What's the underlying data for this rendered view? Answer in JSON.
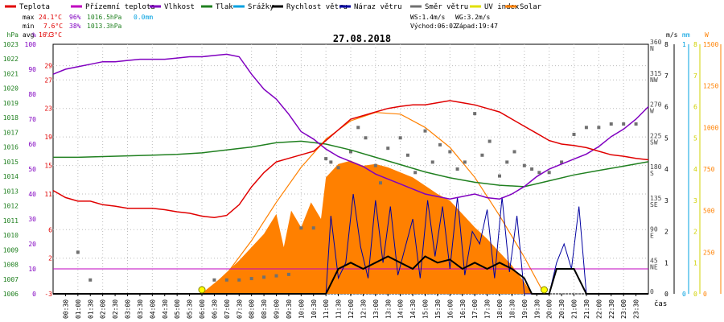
{
  "chart_data": {
    "type": "line",
    "title": "27.08.2018",
    "legend": {
      "position": "top",
      "items": [
        {
          "label": "Teplota",
          "color": "#e00000"
        },
        {
          "label": "Přízemní teplota",
          "color": "#c000c0"
        },
        {
          "label": "Vlhkost",
          "color": "#8000c0"
        },
        {
          "label": "Tlak",
          "color": "#208020"
        },
        {
          "label": "Srážky",
          "color": "#00a0e0"
        },
        {
          "label": "Rychlost větru",
          "color": "#000000"
        },
        {
          "label": "Náraz větru",
          "color": "#0000a0"
        },
        {
          "label": "Směr větru",
          "color": "#707070"
        },
        {
          "label": "UV index",
          "color": "#e0e000"
        },
        {
          "label": "Solar",
          "color": "#ff8000"
        }
      ]
    },
    "stats": {
      "max_label": "max",
      "max_temp": "24.1°C",
      "max_hum": "96%",
      "max_press": "1016.5hPa",
      "rain": "0.0mm",
      "min_label": "min",
      "min_temp": "7.6°C",
      "min_hum": "38%",
      "min_press": "1013.3hPa",
      "avg_label": "avg",
      "avg_temp": "16.3°C"
    },
    "info": {
      "ws": "WS:1.4m/s",
      "wg": "WG:3.2m/s",
      "sunrise": "Východ:06:02",
      "sunset": "Západ:19:47"
    },
    "xlabel": "čas",
    "x_ticks": [
      "00:30",
      "01:00",
      "01:30",
      "02:00",
      "02:30",
      "03:00",
      "03:30",
      "04:00",
      "04:30",
      "05:00",
      "05:30",
      "06:00",
      "06:30",
      "07:00",
      "07:30",
      "08:00",
      "08:30",
      "09:00",
      "09:30",
      "10:00",
      "10:30",
      "11:00",
      "11:30",
      "12:00",
      "12:30",
      "13:00",
      "13:30",
      "14:00",
      "14:30",
      "15:00",
      "15:30",
      "16:00",
      "16:30",
      "17:00",
      "17:30",
      "18:00",
      "18:30",
      "19:00",
      "19:30",
      "20:00",
      "20:30",
      "21:00",
      "21:30",
      "22:00",
      "22:30",
      "23:00",
      "23:30"
    ],
    "axes": {
      "pressure": {
        "unit": "hPa",
        "ylim": [
          1006,
          1023
        ],
        "ticks": [
          "1023",
          "1022",
          "1021",
          "1020",
          "1019",
          "1018",
          "1017",
          "1016",
          "1015",
          "1014",
          "1013",
          "1012",
          "1011",
          "1010",
          "1009",
          "1008",
          "1007",
          "1006"
        ]
      },
      "humidity": {
        "unit": "%",
        "ylim": [
          0,
          100
        ],
        "ticks": [
          "100",
          "90",
          "80",
          "70",
          "60",
          "50",
          "40",
          "30",
          "20",
          "10",
          "0"
        ]
      },
      "temperature": {
        "unit": "°C",
        "ylim": [
          -3,
          32
        ],
        "ticks": [
          "29",
          "27",
          "23",
          "19",
          "15",
          "11",
          "6",
          "2",
          "-3"
        ]
      },
      "direction": {
        "ticks": [
          "360",
          "315",
          "270",
          "225",
          "180",
          "135",
          "90",
          "45",
          "0"
        ],
        "labels": [
          "N",
          "NW",
          "W",
          "SW",
          "S",
          "SE",
          "E",
          "NE",
          ""
        ]
      },
      "wind": {
        "unit": "m/s",
        "ylim": [
          0,
          8
        ],
        "ticks": [
          "8",
          "7",
          "6",
          "5",
          "4",
          "3",
          "2",
          "1",
          "0"
        ]
      },
      "rain": {
        "unit": "mm",
        "ylim": [
          0,
          1
        ],
        "ticks": [
          "1",
          "0"
        ]
      },
      "uv": {
        "ticks": [
          "8",
          "7",
          "6",
          "5",
          "4",
          "3",
          "2",
          "1",
          "0"
        ]
      },
      "solar": {
        "unit": "W",
        "ylim": [
          0,
          1500
        ],
        "ticks": [
          "1500",
          "1250",
          "1000",
          "750",
          "500",
          "250",
          "0"
        ]
      }
    },
    "series": [
      {
        "name": "Teplota",
        "axis": "temperature",
        "color": "#e00000",
        "x": [
          0,
          0.5,
          1,
          1.5,
          2,
          2.5,
          3,
          3.5,
          4,
          4.5,
          5,
          5.5,
          6,
          6.5,
          7,
          7.5,
          8,
          8.5,
          9,
          9.5,
          10,
          10.5,
          11,
          11.5,
          12,
          12.5,
          13,
          13.5,
          14,
          14.5,
          15,
          15.5,
          16,
          16.5,
          17,
          17.5,
          18,
          18.5,
          19,
          19.5,
          20,
          20.5,
          21,
          21.5,
          22,
          22.5,
          23,
          23.5,
          24
        ],
        "y": [
          11.5,
          10.5,
          10,
          10,
          9.5,
          9.3,
          9,
          9,
          9,
          8.8,
          8.5,
          8.3,
          7.9,
          7.7,
          8,
          9.5,
          12,
          14,
          15.5,
          16,
          16.5,
          17,
          18.5,
          20,
          21.5,
          22,
          22.5,
          23,
          23.3,
          23.5,
          23.5,
          23.8,
          24.1,
          23.8,
          23.5,
          23,
          22.5,
          21.5,
          20.5,
          19.5,
          18.5,
          18,
          17.8,
          17.5,
          17,
          16.5,
          16.3,
          16,
          15.8
        ]
      },
      {
        "name": "Vlhkost",
        "axis": "humidity",
        "color": "#8000c0",
        "x": [
          0,
          0.5,
          1,
          1.5,
          2,
          2.5,
          3,
          3.5,
          4,
          4.5,
          5,
          5.5,
          6,
          6.5,
          7,
          7.5,
          8,
          8.5,
          9,
          9.5,
          10,
          10.5,
          11,
          11.5,
          12,
          12.5,
          13,
          13.5,
          14,
          14.5,
          15,
          15.5,
          16,
          16.5,
          17,
          17.5,
          18,
          18.5,
          19,
          19.5,
          20,
          20.5,
          21,
          21.5,
          22,
          22.5,
          23,
          23.5,
          24
        ],
        "y": [
          88,
          90,
          91,
          92,
          93,
          93,
          93.5,
          94,
          94,
          94,
          94.5,
          95,
          95,
          95.5,
          96,
          95,
          88,
          82,
          78,
          72,
          65,
          62,
          58,
          55,
          53,
          51,
          48,
          46,
          44,
          42,
          40,
          39,
          38,
          39,
          40,
          38.5,
          38,
          40,
          43,
          47,
          50,
          52,
          54,
          56,
          59,
          63,
          66,
          70,
          75
        ]
      },
      {
        "name": "Tlak",
        "axis": "pressure",
        "color": "#208020",
        "x": [
          0,
          1,
          2,
          3,
          4,
          5,
          6,
          7,
          8,
          9,
          10,
          11,
          12,
          13,
          14,
          15,
          16,
          17,
          18,
          19,
          20,
          21,
          22,
          23,
          24
        ],
        "y": [
          1015.3,
          1015.3,
          1015.35,
          1015.4,
          1015.45,
          1015.5,
          1015.6,
          1015.8,
          1016,
          1016.3,
          1016.4,
          1016.2,
          1015.8,
          1015.3,
          1014.8,
          1014.3,
          1013.9,
          1013.6,
          1013.4,
          1013.3,
          1013.7,
          1014.1,
          1014.4,
          1014.7,
          1015
        ]
      },
      {
        "name": "Náraz větru",
        "axis": "wind",
        "color": "#0000a0",
        "x": [
          0,
          11,
          11.2,
          11.5,
          11.8,
          12.1,
          12.4,
          12.7,
          13,
          13.3,
          13.6,
          13.9,
          14.2,
          14.5,
          14.8,
          15.1,
          15.4,
          15.7,
          16,
          16.3,
          16.6,
          16.9,
          17.2,
          17.5,
          17.8,
          18.1,
          18.4,
          18.7,
          19,
          19.3,
          20,
          20.3,
          20.6,
          20.9,
          21.2,
          21.5,
          22,
          24
        ],
        "y": [
          0,
          0,
          2.5,
          0.5,
          1,
          3.2,
          1.5,
          0.5,
          3,
          1,
          2.8,
          0.6,
          1.5,
          2.4,
          0.5,
          3,
          1.2,
          2.8,
          0.8,
          3.1,
          0.6,
          2,
          1.6,
          2.7,
          0.5,
          3.1,
          0.7,
          2.5,
          0,
          0,
          0,
          1,
          1.6,
          0.8,
          2.8,
          0,
          0,
          0
        ]
      },
      {
        "name": "Rychlost větru",
        "axis": "wind",
        "color": "#000000",
        "x": [
          0,
          11,
          11.5,
          12,
          12.5,
          13,
          13.5,
          14,
          14.5,
          15,
          15.5,
          16,
          16.5,
          17,
          17.5,
          18,
          18.5,
          19,
          19.3,
          20,
          20.3,
          21,
          21.5,
          22,
          24
        ],
        "y": [
          0,
          0,
          0.8,
          1,
          0.8,
          1,
          1.2,
          1,
          0.8,
          1.2,
          1,
          1.1,
          0.8,
          1,
          0.8,
          1,
          0.8,
          0.5,
          0,
          0,
          0.8,
          0.8,
          0,
          0,
          0
        ]
      },
      {
        "name": "Solar",
        "axis": "solar",
        "color": "#ff8000",
        "x": [
          6,
          7,
          8,
          9,
          10,
          11,
          12,
          13,
          14,
          15,
          16,
          17,
          18,
          19,
          19.8
        ],
        "y": [
          0,
          120,
          320,
          550,
          760,
          930,
          1040,
          1090,
          1080,
          1000,
          880,
          700,
          470,
          220,
          0
        ]
      }
    ],
    "solar_area": {
      "x": [
        6,
        6.5,
        7,
        7.5,
        8,
        8.5,
        9,
        9.3,
        9.6,
        10,
        10.4,
        10.8,
        11,
        11.5,
        12,
        12.5,
        13,
        13.5,
        14,
        14.5,
        15,
        15.5,
        16,
        16.5,
        17,
        17.5,
        18,
        18.5,
        19,
        19.3
      ],
      "y": [
        0,
        60,
        130,
        200,
        280,
        360,
        480,
        280,
        500,
        400,
        550,
        450,
        700,
        780,
        800,
        770,
        780,
        760,
        730,
        700,
        650,
        600,
        560,
        480,
        400,
        330,
        250,
        170,
        70,
        0
      ]
    },
    "wind_direction_points": {
      "x": [
        1,
        1.5,
        6.5,
        7,
        7.5,
        8,
        8.5,
        9,
        9.5,
        10,
        10.5,
        11,
        11.2,
        11.5,
        12,
        12.3,
        12.6,
        13,
        13.2,
        13.5,
        14,
        14.3,
        14.6,
        15,
        15.3,
        15.6,
        16,
        16.3,
        16.6,
        17,
        17.3,
        17.6,
        18,
        18.3,
        18.6,
        19,
        19.3,
        19.6,
        20,
        20.5,
        21,
        21.5,
        22,
        22.5,
        23,
        23.5
      ],
      "y": [
        60,
        20,
        20,
        20,
        20,
        22,
        24,
        26,
        28,
        95,
        95,
        195,
        190,
        182,
        205,
        240,
        225,
        185,
        160,
        210,
        225,
        200,
        175,
        235,
        190,
        215,
        205,
        180,
        190,
        260,
        200,
        220,
        170,
        190,
        205,
        185,
        180,
        175,
        175,
        190,
        230,
        240,
        240,
        245,
        245,
        245
      ]
    },
    "uv_markers": {
      "x": [
        6.0,
        19.8
      ],
      "y": [
        0,
        0
      ]
    },
    "reference_line": {
      "axis": "humidity",
      "y": 10,
      "color": "#c000c0"
    }
  }
}
